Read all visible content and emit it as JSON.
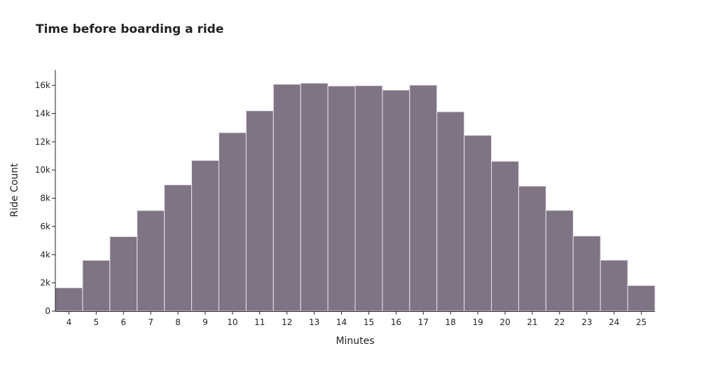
{
  "chart_data": {
    "type": "bar",
    "title": "Time before boarding a ride",
    "xlabel": "Minutes",
    "ylabel": "Ride Count",
    "categories": [
      "4",
      "5",
      "6",
      "7",
      "8",
      "9",
      "10",
      "11",
      "12",
      "13",
      "14",
      "15",
      "16",
      "17",
      "18",
      "19",
      "20",
      "21",
      "22",
      "23",
      "24",
      "25"
    ],
    "values": [
      1650,
      3600,
      5280,
      7130,
      8950,
      10680,
      12650,
      14200,
      16080,
      16160,
      15960,
      15980,
      15670,
      16020,
      14130,
      12460,
      10620,
      8860,
      7140,
      5320,
      3610,
      1810
    ],
    "ylim": [
      0,
      17100
    ],
    "yticks": [
      0,
      2000,
      4000,
      6000,
      8000,
      10000,
      12000,
      14000,
      16000
    ],
    "ytick_labels": [
      "0",
      "2k",
      "4k",
      "6k",
      "8k",
      "10k",
      "12k",
      "14k",
      "16k"
    ],
    "grid": false,
    "bar_color": "#7e7484",
    "bar_edge_color": "#e8e2ec"
  }
}
